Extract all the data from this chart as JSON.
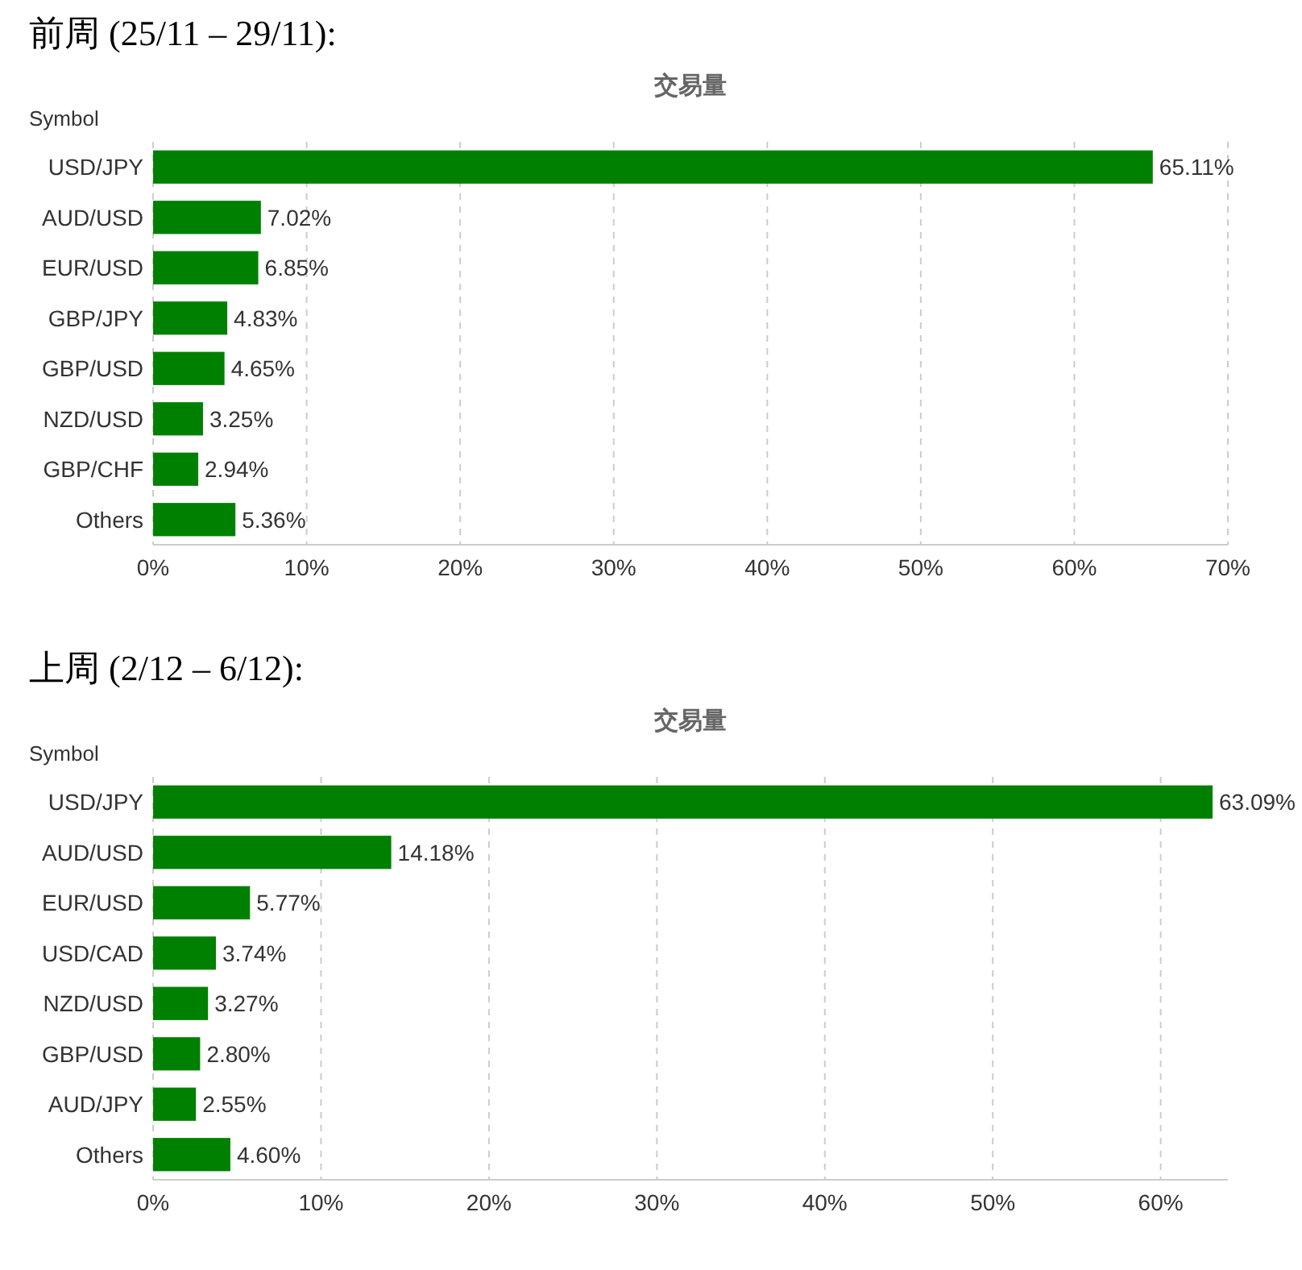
{
  "chart_data": [
    {
      "type": "bar",
      "orientation": "horizontal",
      "title": "前周 (25/11 – 29/11):",
      "subtitle": "交易量",
      "ylabel": "Symbol",
      "color": "#008000",
      "grid": "x",
      "categories": [
        "USD/JPY",
        "AUD/USD",
        "EUR/USD",
        "GBP/JPY",
        "GBP/USD",
        "NZD/USD",
        "GBP/CHF",
        "Others"
      ],
      "values": [
        65.11,
        7.02,
        6.85,
        4.83,
        4.65,
        3.25,
        2.94,
        5.36
      ],
      "value_labels": [
        "65.11%",
        "7.02%",
        "6.85%",
        "4.83%",
        "4.65%",
        "3.25%",
        "2.94%",
        "5.36%"
      ],
      "xlim": [
        0,
        70
      ],
      "xticks": [
        {
          "value": 0,
          "label": "0%"
        },
        {
          "value": 10,
          "label": "10%"
        },
        {
          "value": 20,
          "label": "20%"
        },
        {
          "value": 30,
          "label": "30%"
        },
        {
          "value": 40,
          "label": "40%"
        },
        {
          "value": 50,
          "label": "50%"
        },
        {
          "value": 60,
          "label": "60%"
        },
        {
          "value": 70,
          "label": "70%"
        }
      ]
    },
    {
      "type": "bar",
      "orientation": "horizontal",
      "title": "上周 (2/12 – 6/12):",
      "subtitle": "交易量",
      "ylabel": "Symbol",
      "color": "#008000",
      "grid": "x",
      "categories": [
        "USD/JPY",
        "AUD/USD",
        "EUR/USD",
        "USD/CAD",
        "NZD/USD",
        "GBP/USD",
        "AUD/JPY",
        "Others"
      ],
      "values": [
        63.09,
        14.18,
        5.77,
        3.74,
        3.27,
        2.8,
        2.55,
        4.6
      ],
      "value_labels": [
        "63.09%",
        "14.18%",
        "5.77%",
        "3.74%",
        "3.27%",
        "2.80%",
        "2.55%",
        "4.60%"
      ],
      "xlim": [
        0,
        64
      ],
      "xticks": [
        {
          "value": 0,
          "label": "0%"
        },
        {
          "value": 10,
          "label": "10%"
        },
        {
          "value": 20,
          "label": "20%"
        },
        {
          "value": 30,
          "label": "30%"
        },
        {
          "value": 40,
          "label": "40%"
        },
        {
          "value": 50,
          "label": "50%"
        },
        {
          "value": 60,
          "label": "60%"
        }
      ]
    }
  ]
}
